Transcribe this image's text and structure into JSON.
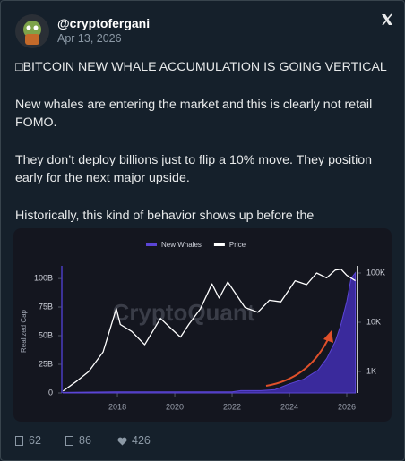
{
  "tweet": {
    "handle": "@cryptofergani",
    "date": "Apr 13, 2026",
    "paragraphs": [
      "□BITCOIN NEW WHALE ACCUMULATION IS GOING VERTICAL",
      "New whales are entering the market and this is clearly not retail FOMO.",
      "They don’t deploy billions just to flip a 10% move. They position early for the next major upside.",
      "Historically, this kind of behavior shows up before the"
    ]
  },
  "chart_data": {
    "type": "line",
    "watermark": "CryptoQuant",
    "ylabel": "Realized Cap",
    "legend": "top",
    "xlim": [
      2016.06,
      2026.375
    ],
    "xticks": [
      2018,
      2020,
      2022,
      2024,
      2026
    ],
    "ylim": [
      0,
      111
    ],
    "yticks": [
      0,
      {
        "value": 25,
        "label": "25B"
      },
      {
        "value": 50,
        "label": "50B"
      },
      {
        "value": 75,
        "label": "75B"
      },
      {
        "value": 100,
        "label": "100B"
      }
    ],
    "y2lim": [
      366,
      140000
    ],
    "y2log": true,
    "y2ticks": [
      {
        "value": 1000,
        "label": "1K"
      },
      {
        "value": 10000,
        "label": "10K"
      },
      {
        "value": 100000,
        "label": "100K"
      }
    ],
    "series": [
      {
        "name": "New Whales",
        "color": "#3a2a9c",
        "kind": "area",
        "x": [
          2016.1,
          2018.0,
          2020.0,
          2022.0,
          2022.3,
          2023.0,
          2023.5,
          2024.0,
          2024.5,
          2025.0,
          2025.3,
          2025.6,
          2025.8,
          2026.0,
          2026.15,
          2026.3
        ],
        "values": [
          0.5,
          1,
          1,
          1,
          2,
          2,
          3,
          8,
          12,
          20,
          30,
          45,
          60,
          80,
          100,
          105
        ]
      },
      {
        "name": "Price",
        "color": "#ffffff",
        "axis": "y2",
        "kind": "line",
        "x": [
          2016.1,
          2016.6,
          2017.0,
          2017.5,
          2017.96,
          2018.1,
          2018.5,
          2018.95,
          2019.5,
          2019.9,
          2020.2,
          2020.5,
          2020.9,
          2021.3,
          2021.55,
          2021.85,
          2022.45,
          2022.9,
          2023.3,
          2023.7,
          2024.2,
          2024.6,
          2024.95,
          2025.3,
          2025.6,
          2025.8,
          2026.0,
          2026.3
        ],
        "values": [
          400,
          650,
          1000,
          2500,
          19000,
          9000,
          6500,
          3500,
          12000,
          7200,
          5000,
          9200,
          19000,
          60000,
          31000,
          66000,
          20000,
          16000,
          28000,
          26000,
          70000,
          58000,
          100000,
          80000,
          115000,
          120000,
          90000,
          70000
        ]
      }
    ]
  },
  "footer": {
    "replies": "62",
    "reposts": "86",
    "likes": "426"
  }
}
